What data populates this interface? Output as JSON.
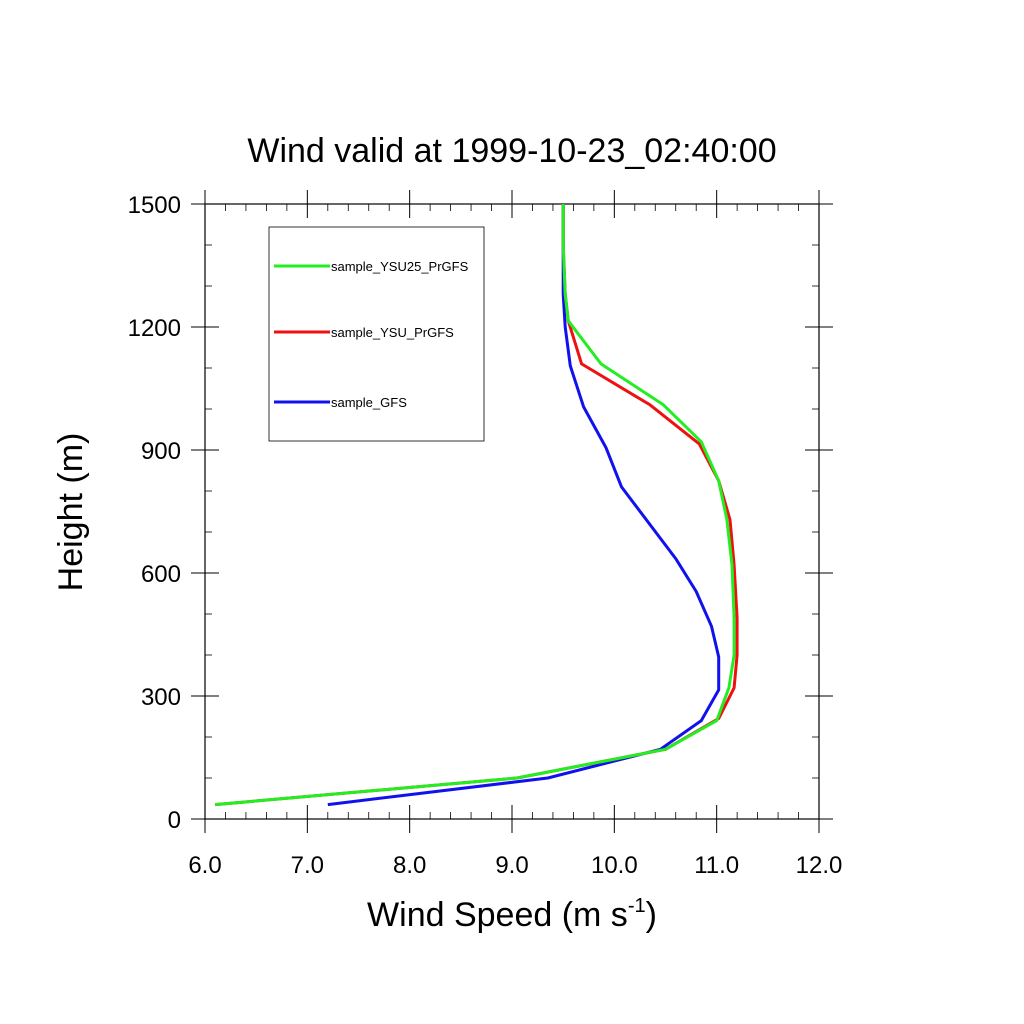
{
  "chart_data": {
    "type": "line",
    "title": "Wind valid at 1999-10-23_02:40:00",
    "xlabel": "Wind Speed (m s",
    "xlabel_superscript": "-1",
    "xlabel_suffix": ")",
    "ylabel": "Height (m)",
    "xlim": [
      6.0,
      12.0
    ],
    "ylim": [
      0,
      1500
    ],
    "xticks": [
      6.0,
      7.0,
      8.0,
      9.0,
      10.0,
      11.0,
      12.0
    ],
    "xtick_labels": [
      "6.0",
      "7.0",
      "8.0",
      "9.0",
      "10.0",
      "11.0",
      "12.0"
    ],
    "yticks": [
      0,
      300,
      600,
      900,
      1200,
      1500
    ],
    "ytick_labels": [
      "0",
      "300",
      "600",
      "900",
      "1200",
      "1500"
    ],
    "grid": false,
    "legend_position": "top-left",
    "series": [
      {
        "name": "sample_YSU25_PrGFS",
        "color": "#22ee22",
        "x": [
          6.1,
          9.05,
          10.5,
          11.0,
          11.12,
          11.17,
          11.17,
          11.15,
          11.1,
          11.02,
          10.85,
          10.48,
          9.87,
          9.55,
          9.52,
          9.5,
          9.5
        ],
        "y": [
          35,
          100,
          170,
          240,
          320,
          400,
          490,
          620,
          730,
          825,
          920,
          1010,
          1110,
          1215,
          1280,
          1400,
          1500
        ]
      },
      {
        "name": "sample_YSU_PrGFS",
        "color": "#ee1111",
        "x": [
          6.1,
          9.05,
          10.5,
          11.02,
          11.17,
          11.2,
          11.2,
          11.17,
          11.13,
          11.02,
          10.83,
          10.35,
          9.68,
          9.55,
          9.52,
          9.5,
          9.5
        ],
        "y": [
          35,
          100,
          170,
          245,
          320,
          400,
          490,
          620,
          730,
          825,
          915,
          1010,
          1110,
          1215,
          1280,
          1400,
          1500
        ]
      },
      {
        "name": "sample_GFS",
        "color": "#1111ee",
        "x": [
          7.2,
          9.35,
          10.45,
          10.85,
          11.02,
          11.02,
          10.95,
          10.8,
          10.6,
          10.07,
          9.92,
          9.7,
          9.57,
          9.52,
          9.5,
          9.5,
          9.5
        ],
        "y": [
          35,
          100,
          170,
          240,
          315,
          395,
          470,
          555,
          635,
          810,
          905,
          1005,
          1105,
          1200,
          1280,
          1400,
          1500
        ]
      }
    ]
  }
}
